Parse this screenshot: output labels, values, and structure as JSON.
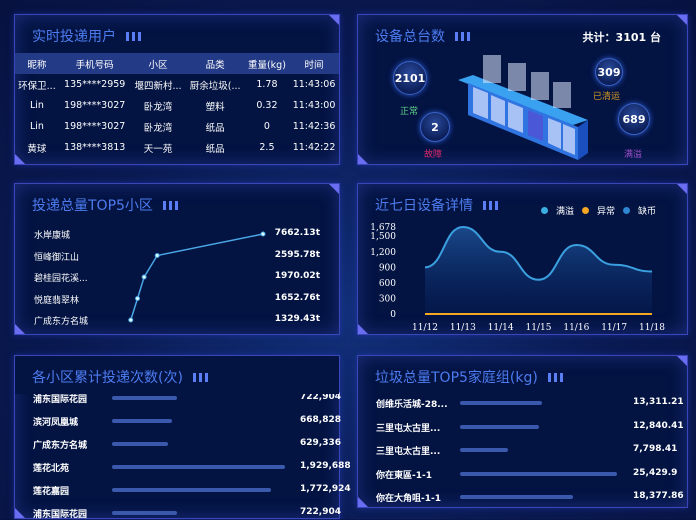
{
  "colors": {
    "accent": "#4d7cf0",
    "normal": "#5fd38a",
    "fault": "#e0286a",
    "cleared": "#d79a22",
    "full": "#9b4fc7",
    "line": "#3ba0e0",
    "abnormal": "#f5a623"
  },
  "users": {
    "title": "实时投递用户",
    "headers": [
      "昵称",
      "手机号码",
      "小区",
      "品类",
      "重量(kg)",
      "时间"
    ],
    "rows": [
      [
        "环保卫...",
        "135****2959",
        "堰四新村...",
        "厨余垃圾(...",
        "1.78",
        "11:43:06"
      ],
      [
        "Lin",
        "198****3027",
        "卧龙湾",
        "塑料",
        "0.32",
        "11:43:00"
      ],
      [
        "Lin",
        "198****3027",
        "卧龙湾",
        "纸品",
        "0",
        "11:42:36"
      ],
      [
        "黄球",
        "138****3813",
        "天一苑",
        "纸品",
        "2.5",
        "11:42:22"
      ]
    ]
  },
  "devices": {
    "title": "设备总台数",
    "total": "共计：3101 台",
    "normal": {
      "value": "2101",
      "label": "正常"
    },
    "fault": {
      "value": "2",
      "label": "故障"
    },
    "cleared": {
      "value": "309",
      "label": "已清运"
    },
    "full": {
      "value": "689",
      "label": "满溢"
    }
  },
  "top5": {
    "title": "投递总量TOP5小区",
    "items": [
      {
        "name": "水岸康城",
        "value": 7662.13,
        "label": "7662.13t"
      },
      {
        "name": "恒峰御江山",
        "value": 2595.78,
        "label": "2595.78t"
      },
      {
        "name": "碧桂园花溪...",
        "value": 1970.02,
        "label": "1970.02t"
      },
      {
        "name": "悦庭翡翠林",
        "value": 1652.76,
        "label": "1652.76t"
      },
      {
        "name": "广成东方名城",
        "value": 1329.43,
        "label": "1329.43t"
      }
    ]
  },
  "chart_data": {
    "type": "area",
    "title": "近七日设备详情",
    "categories": [
      "11/12",
      "11/13",
      "11/14",
      "11/15",
      "11/16",
      "11/17",
      "11/18"
    ],
    "yticks": [
      "0",
      "300",
      "600",
      "900",
      "1,200",
      "1,500",
      "1,678"
    ],
    "ylim": [
      0,
      1678
    ],
    "series": [
      {
        "name": "满溢",
        "values": [
          900,
          1678,
          1200,
          660,
          1330,
          950,
          820
        ]
      },
      {
        "name": "异常",
        "values": [
          0,
          0,
          0,
          0,
          0,
          0,
          0
        ]
      },
      {
        "name": "缺币",
        "values": [
          0,
          0,
          0,
          0,
          0,
          0,
          0
        ]
      }
    ],
    "legend": "top-right",
    "grid": false
  },
  "counts": {
    "title": "各小区累计投递次数(次)",
    "max": 1929688,
    "items": [
      {
        "name": "浦东国际花园",
        "value": 722904,
        "label": "722,904"
      },
      {
        "name": "滨河凤凰城",
        "value": 668828,
        "label": "668,828"
      },
      {
        "name": "广成东方名城",
        "value": 629336,
        "label": "629,336"
      },
      {
        "name": "莲花北苑",
        "value": 1929688,
        "label": "1,929,688"
      },
      {
        "name": "莲花嘉园",
        "value": 1772924,
        "label": "1,772,924"
      },
      {
        "name": "浦东国际花园",
        "value": 722904,
        "label": "722,904"
      }
    ]
  },
  "families": {
    "title": "垃圾总量TOP5家庭组(kg)",
    "max": 25429.9,
    "items": [
      {
        "name": "创维乐活城-28...",
        "value": 13311.21,
        "label": "13,311.21"
      },
      {
        "name": "三里屯太古里...",
        "value": 12840.41,
        "label": "12,840.41"
      },
      {
        "name": "三里屯太古里...",
        "value": 7798.41,
        "label": "7,798.41"
      },
      {
        "name": "你在東區-1-1",
        "value": 25429.9,
        "label": "25,429.9"
      },
      {
        "name": "你在大角咀-1-1",
        "value": 18377.86,
        "label": "18,377.86"
      }
    ]
  }
}
